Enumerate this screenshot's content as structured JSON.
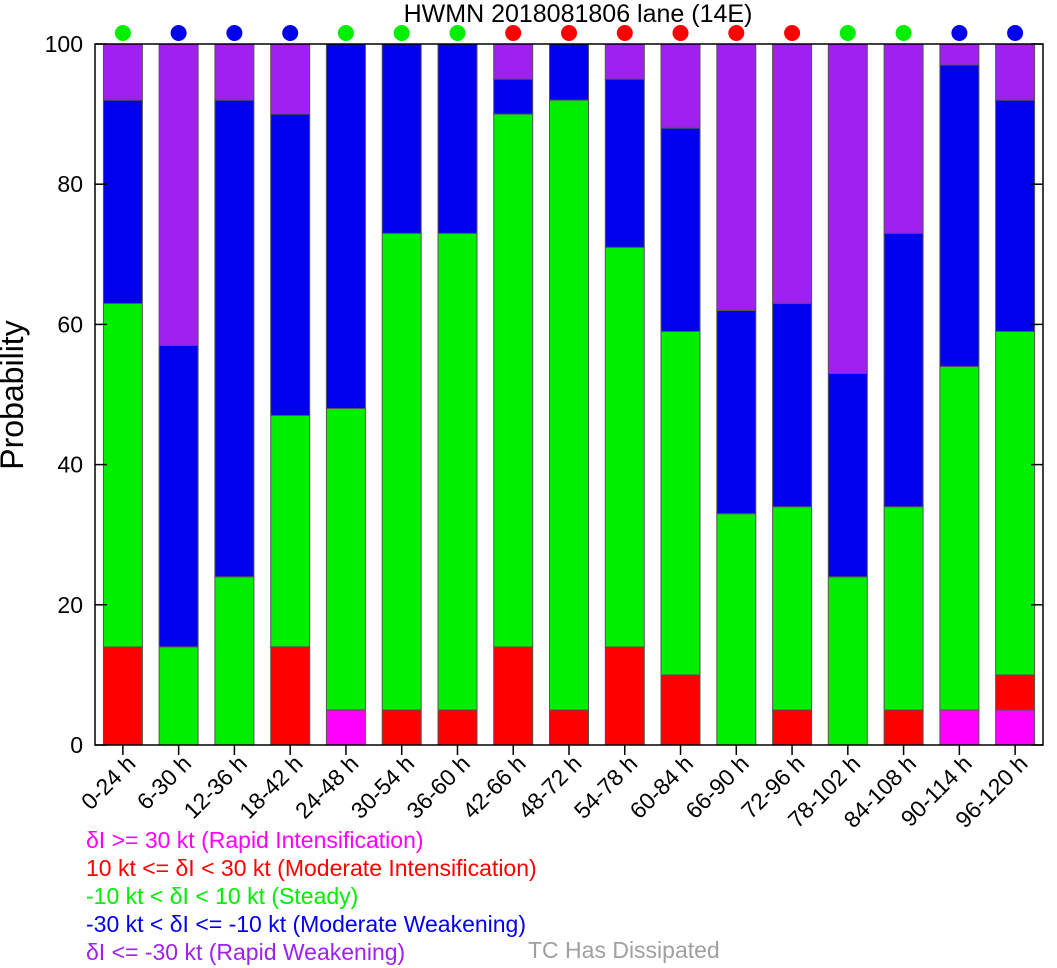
{
  "chart_data": {
    "type": "bar",
    "stacked": true,
    "title": "HWMN 2018081806 lane (14E)",
    "xlabel": "",
    "ylabel": "Probability",
    "ylim": [
      0,
      100
    ],
    "yticks": [
      0,
      20,
      40,
      60,
      80,
      100
    ],
    "grid": false,
    "categories": [
      "0-24 h",
      "6-30 h",
      "12-36 h",
      "18-42 h",
      "24-48 h",
      "30-54 h",
      "36-60 h",
      "42-66 h",
      "48-72 h",
      "54-78 h",
      "60-84 h",
      "66-90 h",
      "72-96 h",
      "78-102 h",
      "84-108 h",
      "90-114 h",
      "96-120 h"
    ],
    "series": [
      {
        "name": "δI >= 30 kt (Rapid Intensification)",
        "color": "#ff00ff",
        "values": [
          0,
          0,
          0,
          0,
          5,
          0,
          0,
          0,
          0,
          0,
          0,
          0,
          0,
          0,
          0,
          5,
          5
        ]
      },
      {
        "name": "10 kt <= δI < 30 kt (Moderate Intensification)",
        "color": "#ff0000",
        "values": [
          14,
          0,
          0,
          14,
          0,
          5,
          5,
          14,
          5,
          14,
          10,
          0,
          5,
          0,
          5,
          0,
          5
        ]
      },
      {
        "name": "-10 kt < δI < 10 kt (Steady)",
        "color": "#00ee00",
        "values": [
          49,
          14,
          24,
          33,
          43,
          68,
          68,
          76,
          87,
          57,
          49,
          33,
          29,
          24,
          29,
          49,
          49
        ]
      },
      {
        "name": "-30 kt < δI <= -10 kt (Moderate Weakening)",
        "color": "#0000ee",
        "values": [
          29,
          43,
          68,
          43,
          52,
          27,
          27,
          5,
          8,
          24,
          29,
          29,
          29,
          29,
          39,
          43,
          33
        ]
      },
      {
        "name": "δI <= -30 kt (Rapid Weakening)",
        "color": "#a020f0",
        "values": [
          8,
          43,
          8,
          10,
          0,
          0,
          0,
          5,
          0,
          5,
          12,
          38,
          37,
          47,
          27,
          3,
          8
        ]
      }
    ],
    "top_markers": [
      "#00ee00",
      "#0000ee",
      "#0000ee",
      "#0000ee",
      "#00ee00",
      "#00ee00",
      "#00ee00",
      "#ff0000",
      "#ff0000",
      "#ff0000",
      "#ff0000",
      "#ff0000",
      "#ff0000",
      "#00ee00",
      "#00ee00",
      "#0000ee",
      "#0000ee"
    ]
  },
  "legend": {
    "items": [
      {
        "label": "δI >= 30 kt (Rapid Intensification)",
        "color": "#ff00ff"
      },
      {
        "label": "10 kt <= δI < 30 kt (Moderate Intensification)",
        "color": "#ff0000"
      },
      {
        "label": "-10 kt < δI < 10 kt (Steady)",
        "color": "#00ee00"
      },
      {
        "label": "-30 kt < δI <= -10 kt (Moderate Weakening)",
        "color": "#0000ee"
      },
      {
        "label": "δI <= -30 kt (Rapid Weakening)",
        "color": "#a020f0"
      }
    ],
    "dissipated": {
      "label": "TC Has Dissipated",
      "color": "#a0a0a0"
    }
  }
}
